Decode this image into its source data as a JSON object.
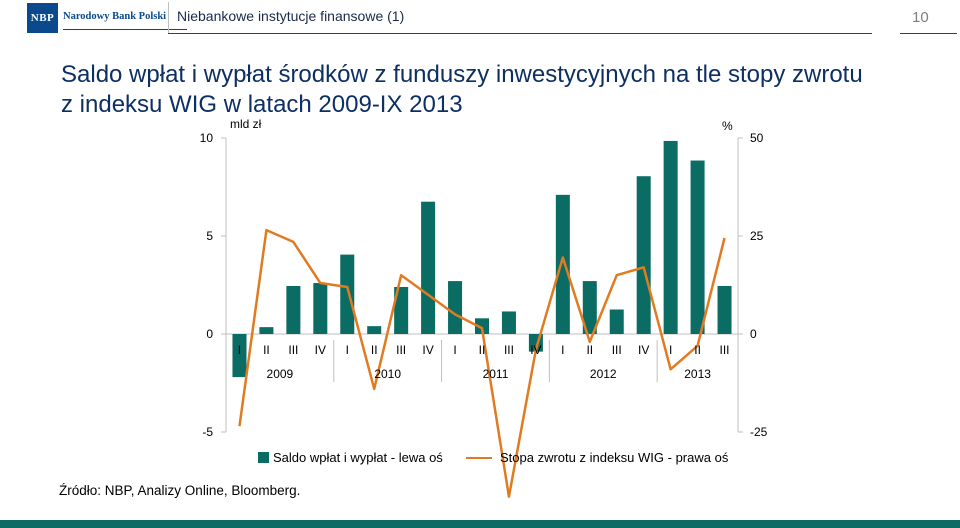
{
  "header": {
    "logo_abbrev": "NBP",
    "logo_name": "Narodowy Bank Polski",
    "title": "Niebankowe instytucje finansowe (1)",
    "page_number": "10"
  },
  "slide": {
    "title": "Saldo wpłat i wypłat środków z funduszy inwestycyjnych na tle stopy zwrotu z indeksu WIG w latach 2009-IX 2013",
    "source": "Źródło: NBP, Analizy Online, Bloomberg."
  },
  "colors": {
    "bar": "#0b6c63",
    "line": "#e17b22",
    "brand": "#0a4a8c"
  },
  "chart_data": {
    "type": "bar",
    "categories": [
      "I",
      "II",
      "III",
      "IV",
      "I",
      "II",
      "III",
      "IV",
      "I",
      "II",
      "III",
      "IV",
      "I",
      "II",
      "III",
      "IV",
      "I",
      "II",
      "III"
    ],
    "year_groups": [
      {
        "label": "2009",
        "count": 4
      },
      {
        "label": "2010",
        "count": 4
      },
      {
        "label": "2011",
        "count": 4
      },
      {
        "label": "2012",
        "count": 4
      },
      {
        "label": "2013",
        "count": 3
      }
    ],
    "series": [
      {
        "name": "Saldo wpłat i wypłat - lewa oś",
        "type": "bar",
        "axis": "left",
        "values": [
          -2.2,
          0.35,
          2.45,
          2.6,
          4.05,
          0.4,
          2.4,
          6.75,
          2.7,
          0.8,
          1.15,
          -0.9,
          7.1,
          2.7,
          1.25,
          8.05,
          9.85,
          8.85,
          2.45
        ]
      },
      {
        "name": "Stopa zwrotu z indeksu WIG - prawa oś",
        "type": "line",
        "axis": "right",
        "values": [
          -23.5,
          26.5,
          23.5,
          13,
          12,
          -14,
          15,
          10,
          5,
          1.5,
          -41.5,
          -4,
          19.5,
          -2,
          15,
          17,
          -9,
          -3,
          24.5
        ]
      }
    ],
    "y_left": {
      "label": "mld zł",
      "min": -5,
      "max": 10,
      "ticks": [
        10,
        5,
        0,
        -5
      ]
    },
    "y_right": {
      "label": "%",
      "min": -25,
      "max": 50,
      "ticks": [
        50,
        25,
        0,
        -25
      ]
    },
    "grid": false,
    "legend_position": "bottom"
  }
}
